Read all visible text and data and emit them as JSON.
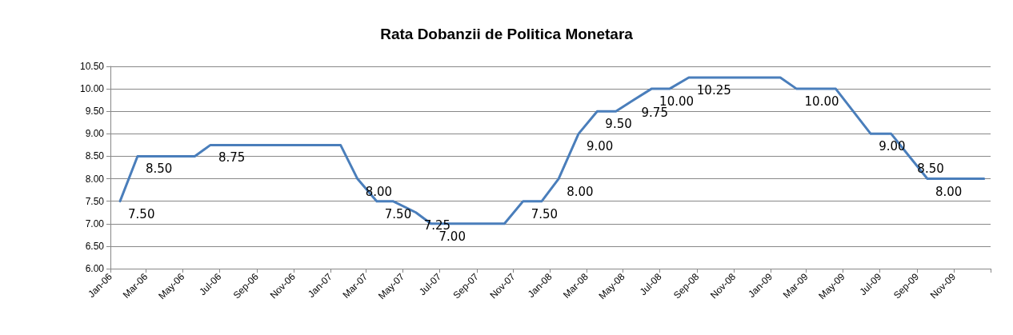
{
  "chart_data": {
    "type": "line",
    "title": "Rata Dobanzii de Politica Monetara",
    "x": [
      "2006-01-17",
      "2006-02-15",
      "2006-05-21",
      "2006-06-16",
      "2007-01-18",
      "2007-02-15",
      "2007-03-19",
      "2007-04-15",
      "2007-05-23",
      "2007-06-17",
      "2007-10-17",
      "2007-11-17",
      "2007-12-18",
      "2008-01-15",
      "2008-02-17",
      "2008-03-19",
      "2008-04-19",
      "2008-05-18",
      "2008-06-17",
      "2008-07-17",
      "2008-08-18",
      "2009-01-17",
      "2009-02-13",
      "2009-04-19",
      "2009-06-16",
      "2009-07-20",
      "2009-08-19",
      "2009-09-18",
      "2009-12-21"
    ],
    "series": [
      {
        "color": "#4a7ebb",
        "values": [
          7.5,
          8.5,
          8.5,
          8.75,
          8.75,
          8.0,
          7.5,
          7.5,
          7.25,
          7.0,
          7.0,
          7.5,
          7.5,
          8.0,
          9.0,
          9.5,
          9.5,
          9.75,
          10.0,
          10.0,
          10.25,
          10.25,
          10.0,
          10.0,
          9.0,
          9.0,
          8.5,
          8.0,
          8.0
        ],
        "value_labels": [
          "7.50",
          "8.50",
          null,
          "8.75",
          null,
          "8.00",
          "7.50",
          null,
          "7.25",
          "7.00",
          null,
          "7.50",
          null,
          "8.00",
          "9.00",
          "9.50",
          null,
          "9.75",
          "10.00",
          null,
          "10.25",
          null,
          "10.00",
          null,
          "9.00",
          null,
          "8.50",
          "8.00",
          null
        ]
      }
    ],
    "xlim": [
      "2006-01-01",
      "2010-01-01"
    ],
    "xticks": [
      {
        "value": "2006-01-01",
        "label": "Jan-06"
      },
      {
        "value": "2006-03-01",
        "label": "Mar-06"
      },
      {
        "value": "2006-05-01",
        "label": "May-06"
      },
      {
        "value": "2006-07-01",
        "label": "Jul-06"
      },
      {
        "value": "2006-09-01",
        "label": "Sep-06"
      },
      {
        "value": "2006-11-01",
        "label": "Nov-06"
      },
      {
        "value": "2007-01-01",
        "label": "Jan-07"
      },
      {
        "value": "2007-03-01",
        "label": "Mar-07"
      },
      {
        "value": "2007-05-01",
        "label": "May-07"
      },
      {
        "value": "2007-07-01",
        "label": "Jul-07"
      },
      {
        "value": "2007-09-01",
        "label": "Sep-07"
      },
      {
        "value": "2007-11-01",
        "label": "Nov-07"
      },
      {
        "value": "2008-01-01",
        "label": "Jan-08"
      },
      {
        "value": "2008-03-01",
        "label": "Mar-08"
      },
      {
        "value": "2008-05-01",
        "label": "May-08"
      },
      {
        "value": "2008-07-01",
        "label": "Jul-08"
      },
      {
        "value": "2008-09-01",
        "label": "Sep-08"
      },
      {
        "value": "2008-11-01",
        "label": "Nov-08"
      },
      {
        "value": "2009-01-01",
        "label": "Jan-09"
      },
      {
        "value": "2009-03-01",
        "label": "Mar-09"
      },
      {
        "value": "2009-05-01",
        "label": "May-09"
      },
      {
        "value": "2009-07-01",
        "label": "Jul-09"
      },
      {
        "value": "2009-09-01",
        "label": "Sep-09"
      },
      {
        "value": "2009-11-01",
        "label": "Nov-09"
      },
      {
        "value": "2010-01-01",
        "label": null
      }
    ],
    "ylim": [
      6.0,
      10.5
    ],
    "yticks": [
      {
        "value": 6.0,
        "label": "6.00"
      },
      {
        "value": 6.5,
        "label": "6.50"
      },
      {
        "value": 7.0,
        "label": "7.00"
      },
      {
        "value": 7.5,
        "label": "7.50"
      },
      {
        "value": 8.0,
        "label": "8.00"
      },
      {
        "value": 8.5,
        "label": "8.50"
      },
      {
        "value": 9.0,
        "label": "9.00"
      },
      {
        "value": 9.5,
        "label": "9.50"
      },
      {
        "value": 10.0,
        "label": "10.00"
      },
      {
        "value": 10.5,
        "label": "10.50"
      }
    ],
    "grid": "y",
    "marker": "none",
    "line_style": "solid"
  }
}
